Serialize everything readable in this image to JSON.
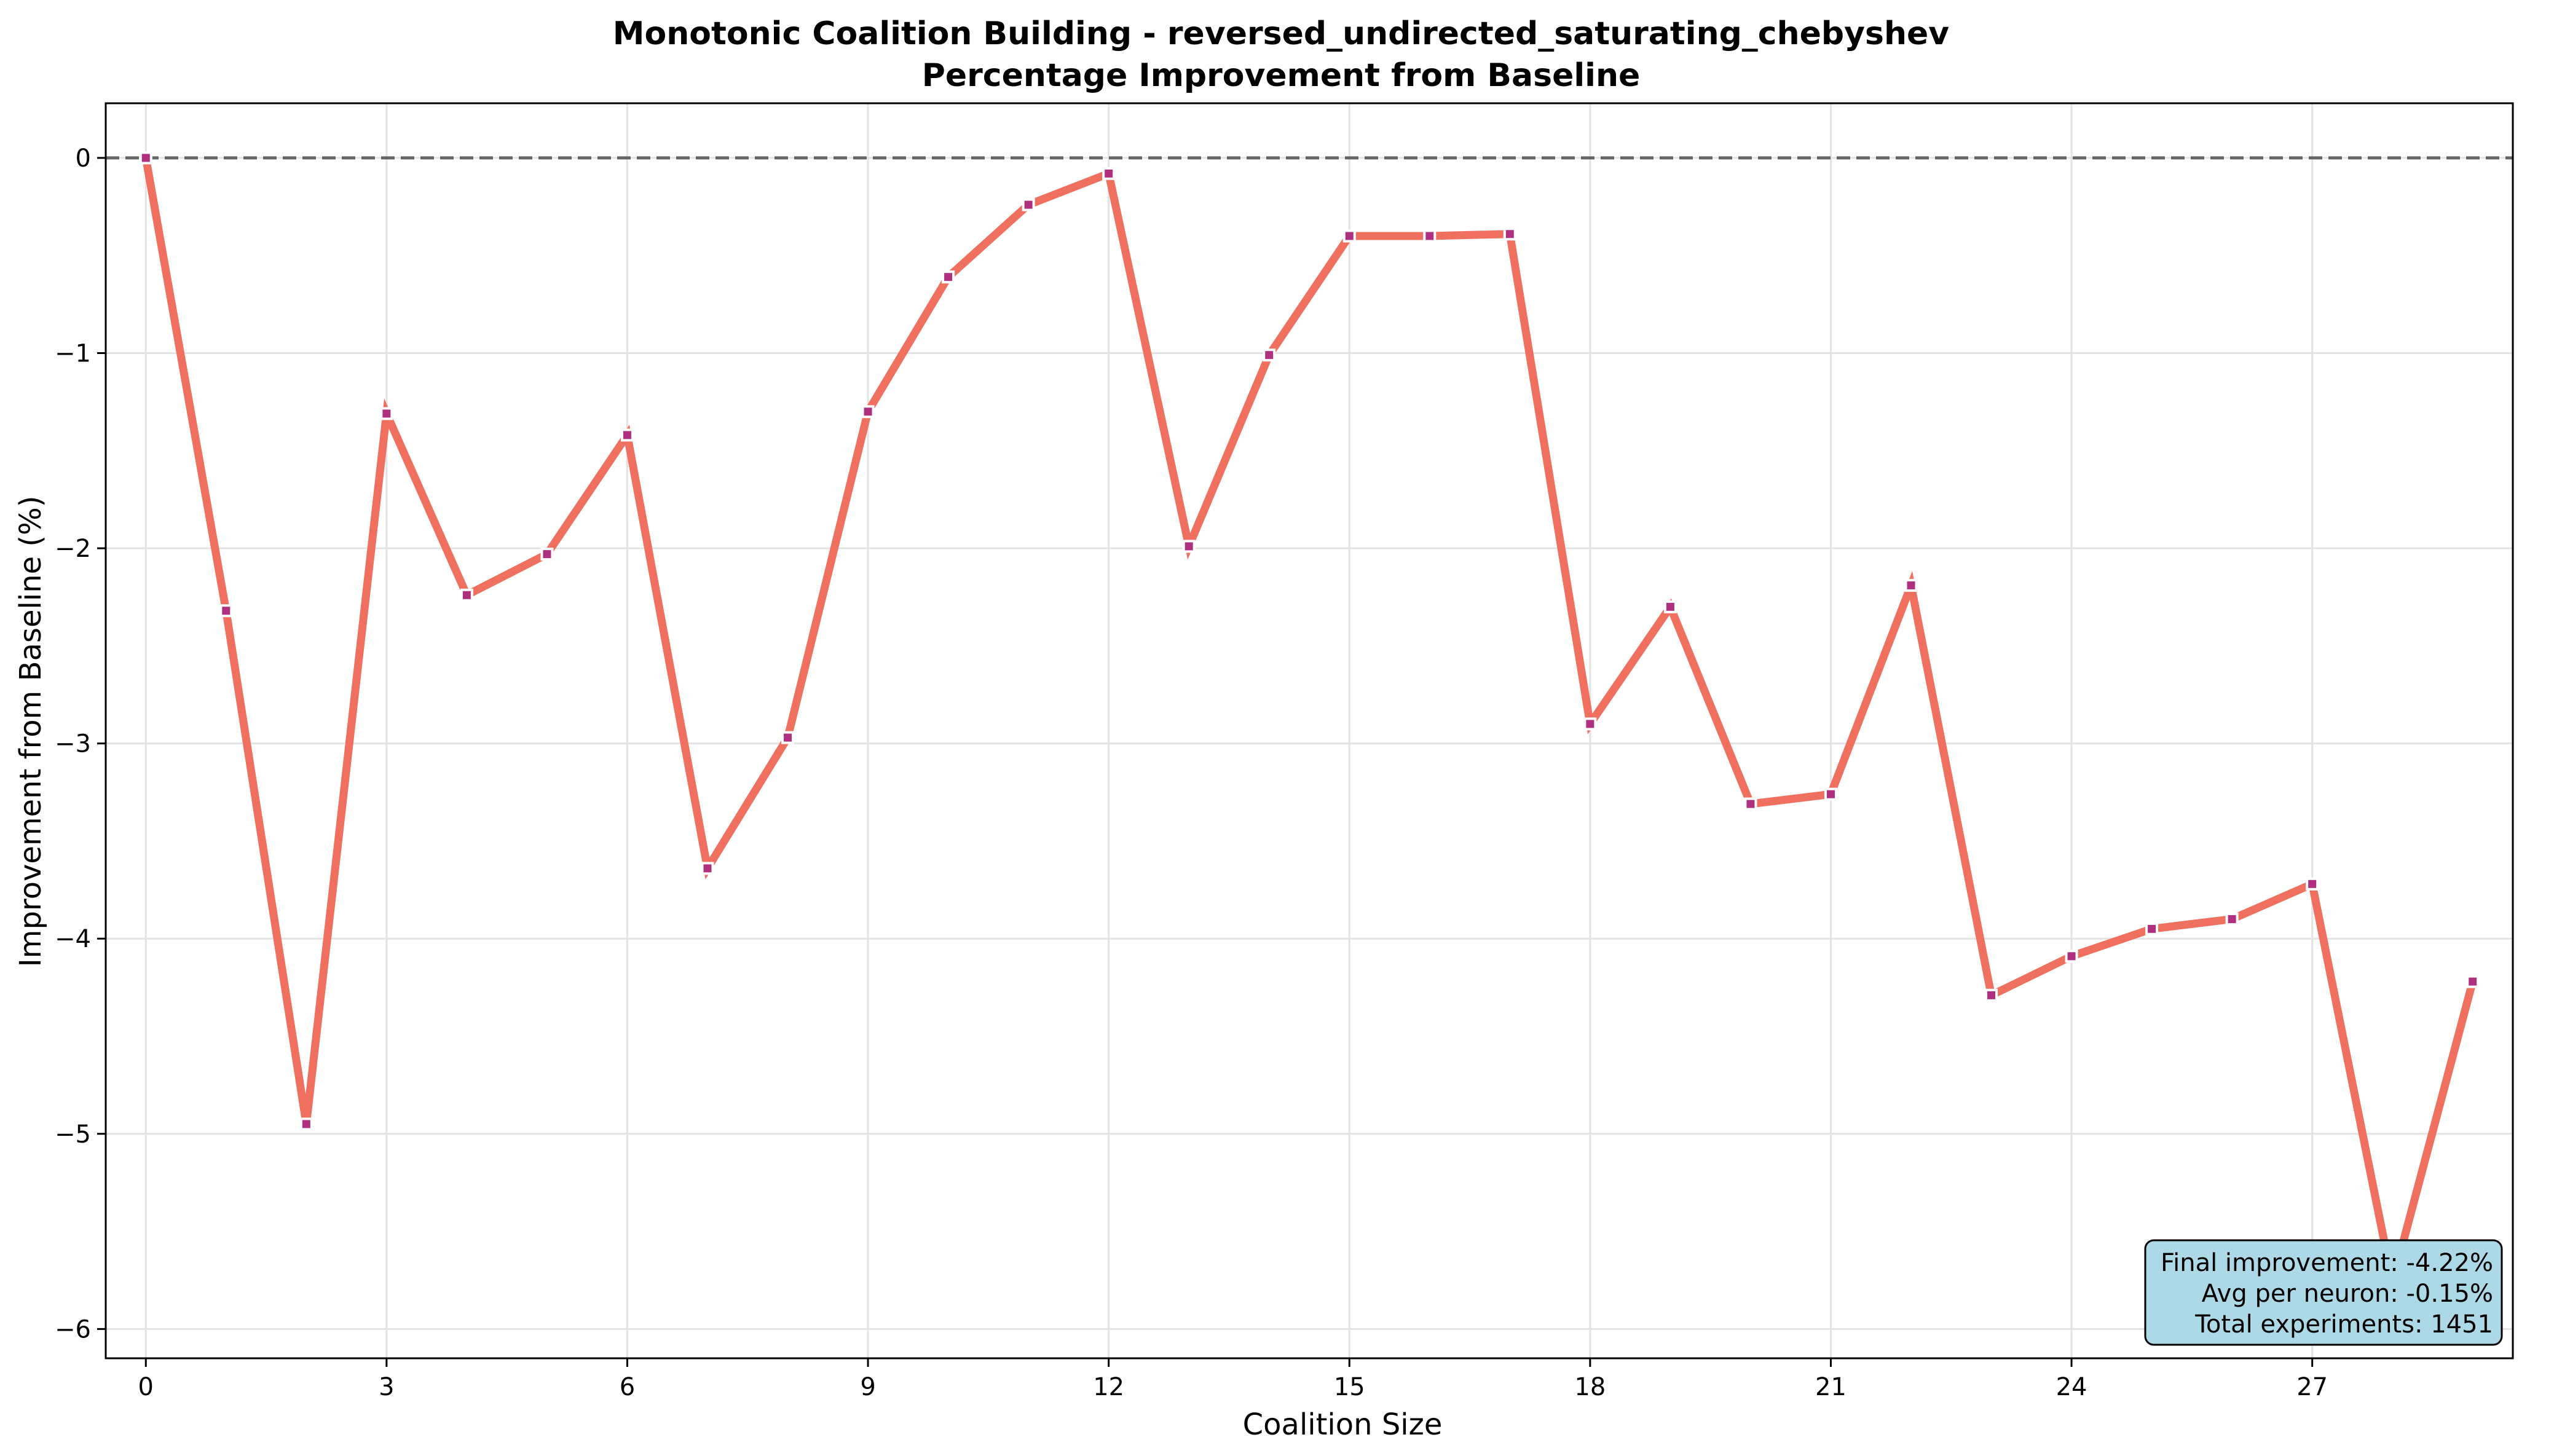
{
  "chart_data": {
    "type": "line",
    "title": "Monotonic Coalition Building - reversed_undirected_saturating_chebyshev",
    "subtitle": "Percentage Improvement from Baseline",
    "xlabel": "Coalition Size",
    "ylabel": "Improvement from Baseline (%)",
    "xlim": [
      -0.5,
      29.5
    ],
    "ylim": [
      -6.15,
      0.28
    ],
    "xticks": [
      0,
      3,
      6,
      9,
      12,
      15,
      18,
      21,
      24,
      27
    ],
    "yticks": [
      0,
      -1,
      -2,
      -3,
      -4,
      -5,
      -6
    ],
    "ytick_labels": [
      "0",
      "−1",
      "−2",
      "−3",
      "−4",
      "−5",
      "−6"
    ],
    "grid": true,
    "baseline": 0,
    "line_color": "#f07060",
    "marker_color": "#b03080",
    "baseline_color": "#666666",
    "x": [
      0,
      1,
      2,
      3,
      4,
      5,
      6,
      7,
      8,
      9,
      10,
      11,
      12,
      13,
      14,
      15,
      16,
      17,
      18,
      19,
      20,
      21,
      22,
      23,
      24,
      25,
      26,
      27,
      28,
      29
    ],
    "y": [
      0.0,
      -2.32,
      -4.95,
      -1.31,
      -2.24,
      -2.03,
      -1.42,
      -3.64,
      -2.97,
      -1.3,
      -0.61,
      -0.24,
      -0.08,
      -1.99,
      -1.01,
      -0.4,
      -0.4,
      -0.39,
      -2.9,
      -2.3,
      -3.31,
      -3.26,
      -2.19,
      -4.29,
      -4.09,
      -3.95,
      -3.9,
      -3.72,
      -5.76,
      -4.22
    ],
    "annotation": {
      "lines": [
        "Final improvement: -4.22%",
        "Avg per neuron: -0.15%",
        "Total experiments: 1451"
      ],
      "location": "bottom-right",
      "background": "#add8e6"
    }
  }
}
